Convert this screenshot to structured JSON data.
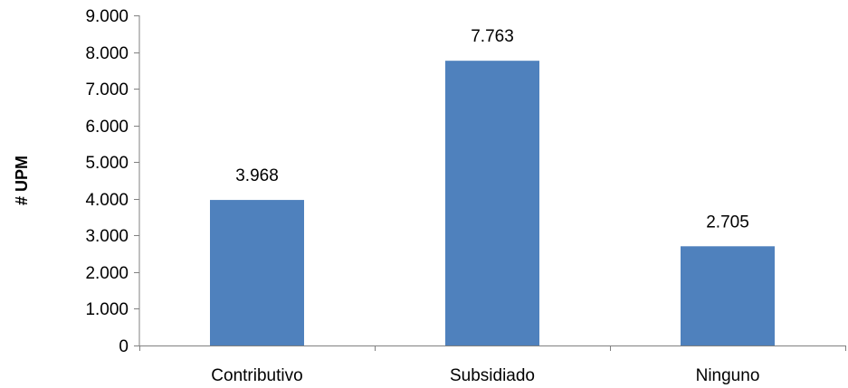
{
  "chart_data": {
    "type": "bar",
    "categories": [
      "Contributivo",
      "Subsidiado",
      "Ninguno"
    ],
    "values": [
      3968,
      7763,
      2705
    ],
    "value_labels": [
      "3.968",
      "7.763",
      "2.705"
    ],
    "title": "",
    "xlabel": "",
    "ylabel": "# UPM",
    "ylim": [
      0,
      9000
    ],
    "yticks": [
      0,
      1000,
      2000,
      3000,
      4000,
      5000,
      6000,
      7000,
      8000,
      9000
    ],
    "ytick_labels": [
      "0",
      "1.000",
      "2.000",
      "3.000",
      "4.000",
      "5.000",
      "6.000",
      "7.000",
      "8.000",
      "9.000"
    ],
    "grid": false,
    "legend": "none",
    "colors": {
      "bar": "#4F81BD",
      "axis": "#808080",
      "text": "#000000"
    }
  }
}
